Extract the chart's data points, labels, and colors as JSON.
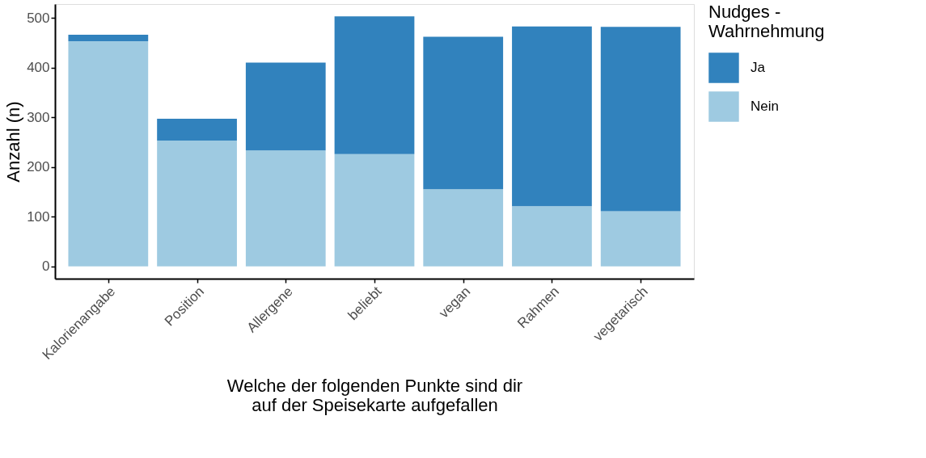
{
  "chart_data": {
    "type": "bar",
    "stacked": true,
    "xlabel": "Welche der folgenden Punkte sind dir\n auf der Speisekarte aufgefallen",
    "ylabel": "Anzahl (n)",
    "legend_title": "Nudges -\n Wahrnehmung",
    "categories": [
      "Kalorienangabe",
      "Position",
      "Allergene",
      "beliebt",
      "vegan",
      "Rahmen",
      "vegetarisch"
    ],
    "series": [
      {
        "name": "Nein",
        "color": "#9ecae1",
        "values": [
          453,
          253,
          233,
          226,
          155,
          121,
          111
        ]
      },
      {
        "name": "Ja",
        "color": "#3182bd",
        "values": [
          13,
          44,
          177,
          277,
          307,
          362,
          371
        ]
      }
    ],
    "ylim": [
      -25,
      528
    ],
    "yticks": [
      0,
      100,
      200,
      300,
      400,
      500
    ],
    "grid": false,
    "legend": "right"
  }
}
